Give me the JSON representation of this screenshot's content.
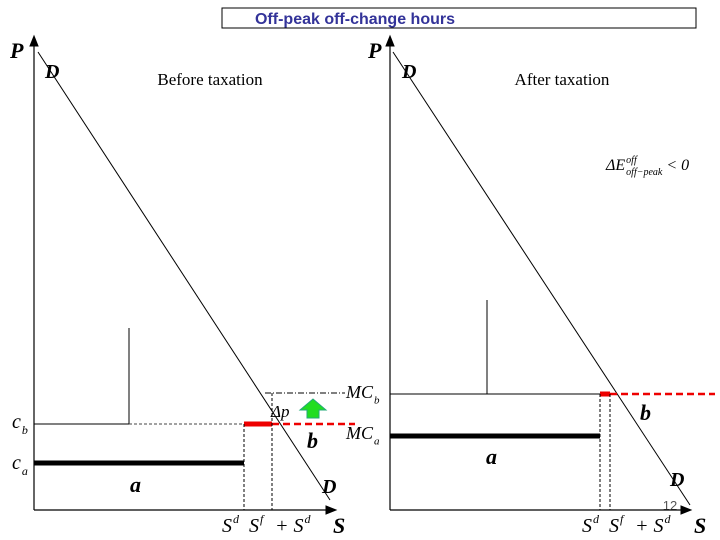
{
  "title": "Off-peak off-change hours",
  "page_number": "12",
  "panels": [
    {
      "caption": "Before taxation",
      "y_axis": "P",
      "x_axis": "S",
      "demand_top": "D",
      "demand_bottom": "D",
      "price_labels": [
        {
          "base": "c",
          "sub": "b"
        },
        {
          "base": "c",
          "sub": "a"
        }
      ],
      "cost_labels": [
        {
          "base": "MC",
          "sub": "b"
        },
        {
          "base": "MC",
          "sub": "a"
        }
      ],
      "delta_p": "Δp",
      "area_a": "a",
      "area_b": "b",
      "quantity_labels": [
        {
          "base": "S",
          "sup": "d"
        },
        {
          "base": "S",
          "sup": "f"
        },
        {
          "base": "+ S",
          "sup": "d"
        }
      ]
    },
    {
      "caption": "After taxation",
      "y_axis": "P",
      "x_axis": "S",
      "demand_top": "D",
      "demand_bottom": "D",
      "change": {
        "base": "ΔE",
        "sup": "off",
        "sub": "off−peak",
        "after": "< 0"
      },
      "area_a": "a",
      "area_b": "b",
      "quantity_labels": [
        {
          "base": "S",
          "sup": "d"
        },
        {
          "base": "S",
          "sup": "f"
        },
        {
          "base": "+ S",
          "sup": "d"
        }
      ]
    }
  ]
}
